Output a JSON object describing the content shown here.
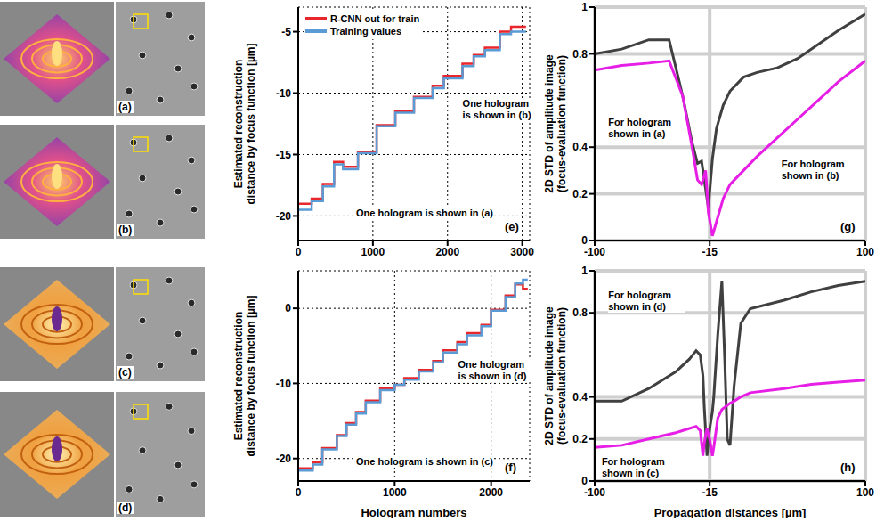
{
  "images": [
    {
      "label": "(a)"
    },
    {
      "label": "(b)"
    },
    {
      "label": "(c)"
    },
    {
      "label": "(d)"
    }
  ],
  "chart_data": [
    {
      "type": "line",
      "label": "(e)",
      "y_label": "Estimated reconstruction distance by focus function [µm]",
      "line_style": "step",
      "x": [
        0,
        180,
        330,
        480,
        600,
        800,
        1050,
        1300,
        1550,
        1800,
        1950,
        2200,
        2350,
        2500,
        2700,
        2850,
        3050
      ],
      "series": [
        {
          "name": "R-CNN out for train",
          "color": "#e8262b",
          "values": [
            -19.0,
            -18.6,
            -17.4,
            -15.6,
            -16.0,
            -14.8,
            -12.6,
            -11.5,
            -10.3,
            -9.4,
            -8.6,
            -7.6,
            -6.9,
            -6.3,
            -5.0,
            -4.6,
            -4.6
          ]
        },
        {
          "name": "Training values",
          "color": "#5b9bd5",
          "values": [
            -19.5,
            -18.8,
            -17.6,
            -15.8,
            -16.2,
            -14.9,
            -12.7,
            -11.6,
            -10.4,
            -9.6,
            -8.8,
            -7.8,
            -7.0,
            -6.5,
            -5.2,
            -5.0,
            -5.0
          ]
        }
      ],
      "xlim": [
        0,
        3100
      ],
      "xticks": [
        0,
        1000,
        2000,
        3000
      ],
      "ylim": [
        -22,
        -3
      ],
      "yticks": [
        -20,
        -15,
        -10,
        -5
      ],
      "grid": true,
      "legend": "upper left",
      "annotations": [
        {
          "text": "One hologram is shown in (b)"
        },
        {
          "text": "One hologram is shown in (a)"
        }
      ]
    },
    {
      "type": "line",
      "label": "(f)",
      "y_label": "Estimated reconstruction distance by focus function [µm]",
      "x_label": "Hologram numbers",
      "line_style": "step",
      "x": [
        0,
        150,
        250,
        400,
        500,
        600,
        700,
        850,
        1000,
        1100,
        1250,
        1400,
        1500,
        1650,
        1750,
        1900,
        2000,
        2150,
        2250,
        2330,
        2380
      ],
      "series": [
        {
          "name": "R-CNN out for train",
          "color": "#e8262b",
          "values": [
            -21.3,
            -20.5,
            -18.6,
            -16.9,
            -15.3,
            -13.8,
            -12.3,
            -10.7,
            -10.2,
            -9.3,
            -8.2,
            -7.0,
            -5.6,
            -4.5,
            -3.3,
            -2.2,
            -0.2,
            1.7,
            3.2,
            2.6,
            2.6
          ]
        },
        {
          "name": "Training values",
          "color": "#5b9bd5",
          "values": [
            -21.6,
            -20.8,
            -18.8,
            -17.0,
            -15.5,
            -14.0,
            -12.5,
            -10.9,
            -10.2,
            -9.5,
            -8.4,
            -7.2,
            -5.9,
            -4.8,
            -3.6,
            -2.4,
            -0.3,
            1.5,
            3.3,
            3.8,
            3.8
          ]
        }
      ],
      "xlim": [
        0,
        2400
      ],
      "xticks": [
        0,
        1000,
        2000
      ],
      "ylim": [
        -23,
        5
      ],
      "yticks": [
        -20,
        -10,
        0
      ],
      "grid": true,
      "annotations": [
        {
          "text": "One hologram is shown in (d)"
        },
        {
          "text": "One hologram is shown in (c)"
        }
      ]
    },
    {
      "type": "line",
      "label": "(g)",
      "y_label": "2D STD of amplitude image (focus-evaluation function)",
      "x": [
        -100,
        -80,
        -60,
        -45,
        -35,
        -28,
        -24,
        -21,
        -18,
        -16,
        -13,
        -10,
        -5,
        0,
        10,
        20,
        35,
        50,
        65,
        80,
        100
      ],
      "series": [
        {
          "name": "For hologram shown in (a)",
          "color": "#404040",
          "values": [
            0.8,
            0.82,
            0.86,
            0.86,
            0.62,
            0.42,
            0.33,
            0.34,
            0.22,
            0.14,
            0.35,
            0.48,
            0.58,
            0.64,
            0.7,
            0.72,
            0.74,
            0.78,
            0.84,
            0.9,
            0.97
          ]
        },
        {
          "name": "For hologram shown in (b)",
          "color": "#e61ee6",
          "values": [
            0.73,
            0.75,
            0.76,
            0.77,
            0.62,
            0.4,
            0.26,
            0.24,
            0.3,
            0.12,
            0.02,
            0.08,
            0.18,
            0.24,
            0.3,
            0.36,
            0.44,
            0.52,
            0.6,
            0.68,
            0.77
          ]
        }
      ],
      "xlim": [
        -100,
        100
      ],
      "xticks": [
        -100,
        -15,
        100
      ],
      "ylim": [
        0,
        1
      ],
      "yticks": [
        0,
        0.2,
        0.4,
        0.8,
        1
      ],
      "grid": true
    },
    {
      "type": "line",
      "label": "(h)",
      "y_label": "2D STD of amplitude image (focus-evaluation function)",
      "x_label": "Propagation distances [µm]",
      "x": [
        -100,
        -80,
        -60,
        -40,
        -30,
        -25,
        -22,
        -20,
        -19,
        -17,
        -15,
        -13,
        -12,
        -9,
        -6,
        -4,
        -2,
        0,
        3,
        8,
        15,
        40,
        60,
        80,
        100
      ],
      "series": [
        {
          "name": "For hologram shown in (d)",
          "color": "#404040",
          "values": [
            0.38,
            0.38,
            0.44,
            0.52,
            0.58,
            0.62,
            0.6,
            0.5,
            0.35,
            0.12,
            0.25,
            0.33,
            0.4,
            0.7,
            0.95,
            0.6,
            0.2,
            0.17,
            0.45,
            0.75,
            0.82,
            0.86,
            0.9,
            0.93,
            0.95
          ]
        },
        {
          "name": "For hologram shown in (c)",
          "color": "#e61ee6",
          "values": [
            0.16,
            0.17,
            0.2,
            0.23,
            0.25,
            0.26,
            0.24,
            0.12,
            0.18,
            0.25,
            0.2,
            0.12,
            0.16,
            0.3,
            0.34,
            0.35,
            0.36,
            0.37,
            0.38,
            0.4,
            0.42,
            0.44,
            0.46,
            0.47,
            0.48
          ]
        }
      ],
      "xlim": [
        -100,
        100
      ],
      "xticks": [
        -100,
        -15,
        100
      ],
      "ylim": [
        0,
        1
      ],
      "yticks": [
        0,
        0.2,
        0.4,
        0.8,
        1
      ],
      "grid": true
    }
  ]
}
